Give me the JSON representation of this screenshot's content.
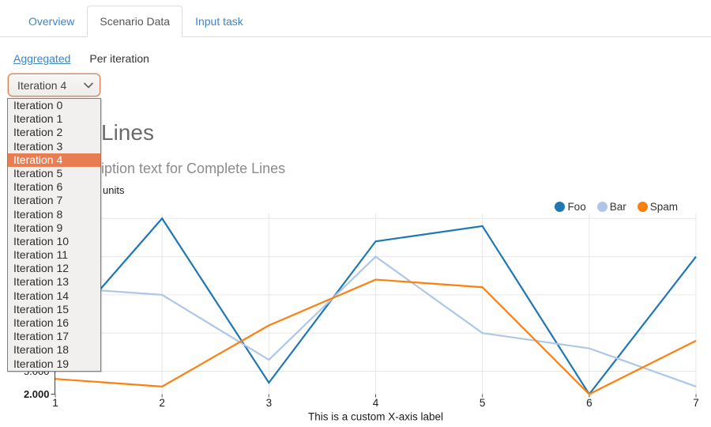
{
  "tabs": {
    "items": [
      {
        "label": "Overview",
        "active": false
      },
      {
        "label": "Scenario Data",
        "active": true
      },
      {
        "label": "Input task",
        "active": false
      }
    ]
  },
  "subnav": {
    "links": [
      {
        "label": "Aggregated",
        "underlined": true
      },
      {
        "label": "Per iteration",
        "underlined": false
      }
    ]
  },
  "iteration_dropdown": {
    "selected_label": "Iteration 4",
    "selected_index": 4,
    "options": [
      "Iteration 0",
      "Iteration 1",
      "Iteration 2",
      "Iteration 3",
      "Iteration 4",
      "Iteration 5",
      "Iteration 6",
      "Iteration 7",
      "Iteration 8",
      "Iteration 9",
      "Iteration 10",
      "Iteration 11",
      "Iteration 12",
      "Iteration 13",
      "Iteration 14",
      "Iteration 15",
      "Iteration 16",
      "Iteration 17",
      "Iteration 18",
      "Iteration 19"
    ]
  },
  "chart_data": {
    "type": "line",
    "title_visible": "Lines",
    "subtitle_visible": "iption text for Complete Lines",
    "ylabel_visible": "units",
    "xlabel": "This is a custom X-axis label",
    "x": [
      1,
      2,
      3,
      4,
      5,
      6,
      7
    ],
    "series": [
      {
        "name": "Foo",
        "color": "#1f77b4",
        "values": [
          9,
          25,
          3.5,
          22,
          24,
          2,
          20
        ]
      },
      {
        "name": "Bar",
        "color": "#aec7e8",
        "values": [
          16,
          15,
          6.5,
          20,
          10,
          8,
          3
        ]
      },
      {
        "name": "Spam",
        "color": "#ff7f0e",
        "values": [
          4,
          3,
          11,
          17,
          16,
          2,
          9
        ]
      }
    ],
    "y_axis": {
      "min": 2,
      "gridline_values": [
        5,
        10,
        15,
        20,
        25
      ],
      "visible_tick_labels": [
        "5.000",
        "2.000"
      ],
      "tick_format": "three-decimal (e.g. 2.000)"
    },
    "x_axis": {
      "ticks": [
        "1",
        "2",
        "3",
        "4",
        "5",
        "6",
        "7"
      ]
    },
    "legend": {
      "position": "top-right",
      "entries": [
        "Foo",
        "Bar",
        "Spam"
      ]
    },
    "grid": true
  },
  "colors": {
    "accent_blue": "#3e85c6",
    "selection_orange": "#e87d52",
    "focus_border": "#de7e53"
  }
}
